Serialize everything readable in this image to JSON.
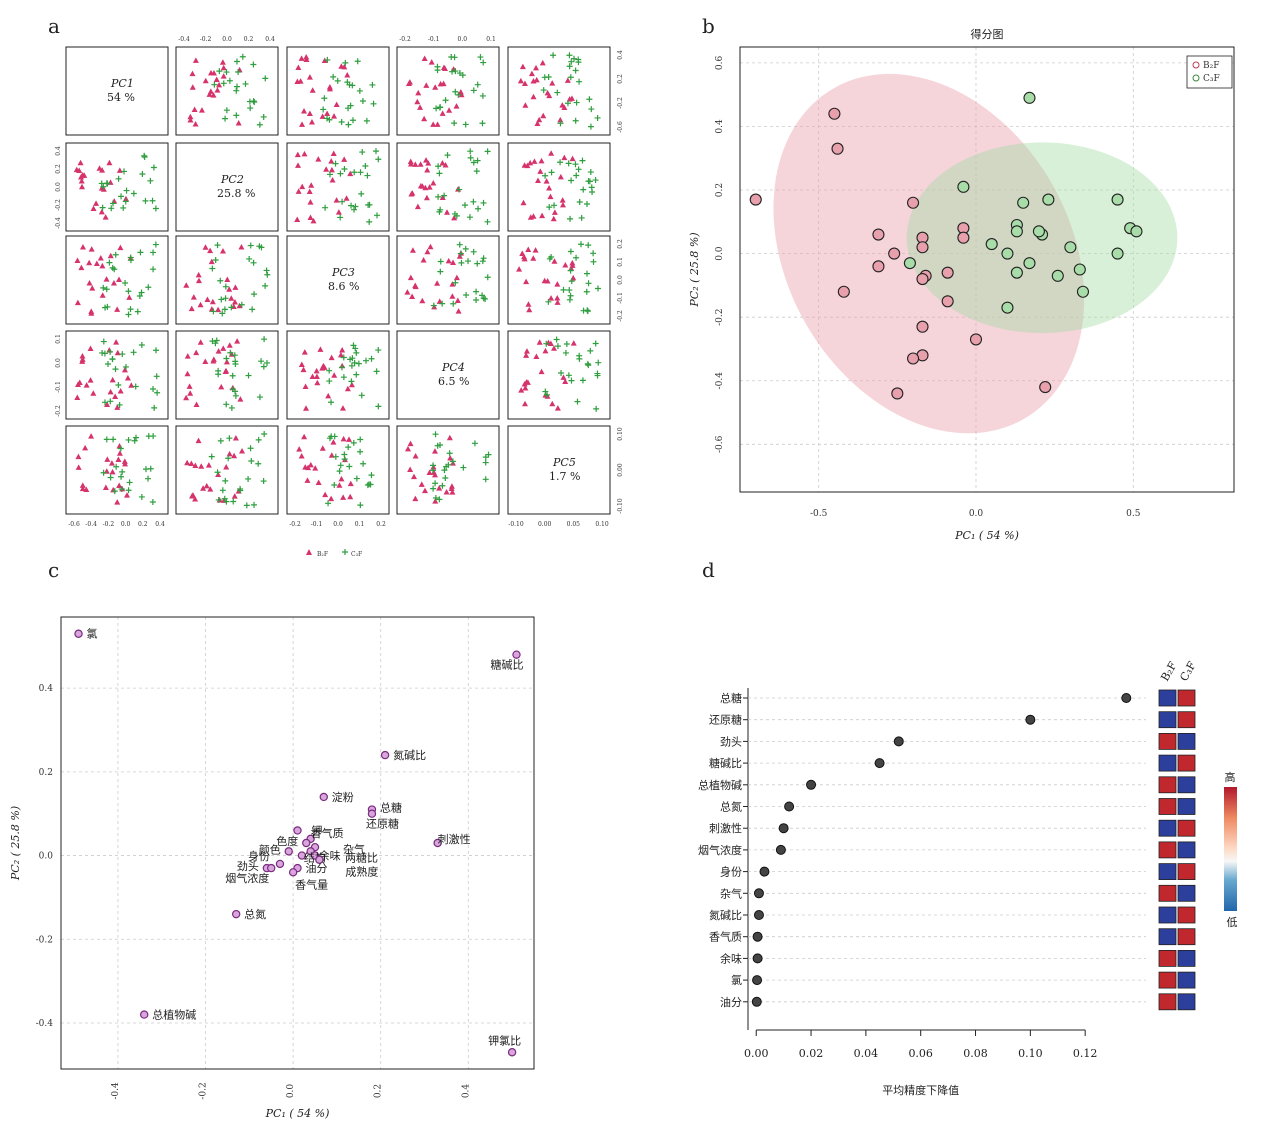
{
  "panel_labels": [
    "a",
    "b",
    "c",
    "d"
  ],
  "chart_data": [
    {
      "type": "scatter",
      "panel": "a",
      "diag": [
        {
          "pc": "PC1",
          "pct": "54 %"
        },
        {
          "pc": "PC2",
          "pct": "25.8 %"
        },
        {
          "pc": "PC3",
          "pct": "8.6 %"
        },
        {
          "pc": "PC4",
          "pct": "6.5 %"
        },
        {
          "pc": "PC5",
          "pct": "1.7 %"
        }
      ],
      "top_ticks": {
        "col2": [
          "-0.4",
          "-0.2",
          "0.0",
          "0.2",
          "0.4"
        ],
        "col4": [
          "-0.2",
          "-0.1",
          "0.0",
          "0.1"
        ]
      },
      "bottom_ticks": {
        "col1": [
          "-0.6",
          "-0.4",
          "-0.2",
          "0.0",
          "0.2",
          "0.4"
        ],
        "col3": [
          "-0.2",
          "-0.1",
          "0.0",
          "0.1",
          "0.2"
        ],
        "col5": [
          "-0.10",
          "0.00",
          "0.05",
          "0.10"
        ]
      },
      "left_ticks": {
        "row2": [
          "0.4",
          "0.2",
          "0.0",
          "-0.2",
          "-0.4"
        ],
        "row4": [
          "0.1",
          "0.0",
          "-0.1",
          "-0.2"
        ]
      },
      "right_ticks": {
        "row1": [
          "0.4",
          "0.2",
          "-0.2",
          "-0.6"
        ],
        "row3": [
          "0.2",
          "0.1",
          "0.0",
          "-0.1",
          "-0.2"
        ],
        "row5": [
          "0.10",
          "0.00",
          "-0.10"
        ]
      },
      "legend": [
        "B₂F",
        "C₃F"
      ],
      "colors": {
        "B2F": "#d6336c",
        "C3F": "#2e9e3e"
      }
    },
    {
      "type": "scatter",
      "panel": "b",
      "title": "得分图",
      "xlabel": "PC₁ ( 54 %)",
      "ylabel": "PC₂ ( 25.8 %)",
      "xlim": [
        -0.75,
        0.82
      ],
      "ylim": [
        -0.75,
        0.65
      ],
      "xticks": [
        "-0.5",
        "0.0",
        "0.5"
      ],
      "xtick_vals": [
        -0.5,
        0.0,
        0.5
      ],
      "yticks": [
        "-0.6",
        "-0.4",
        "-0.2",
        "0.0",
        "0.2",
        "0.4",
        "0.6"
      ],
      "ytick_vals": [
        -0.6,
        -0.4,
        -0.2,
        0.0,
        0.2,
        0.4,
        0.6
      ],
      "legend": [
        "B₂F",
        "C₃F"
      ],
      "series": [
        {
          "name": "B₂F",
          "color": "#e8a0ad",
          "edge": "#c0395a",
          "ellipse": {
            "cx": -0.15,
            "cy": 0.0,
            "rx": 0.45,
            "ry": 0.6,
            "angle": -30
          },
          "points": [
            [
              -0.45,
              0.44
            ],
            [
              -0.44,
              0.33
            ],
            [
              -0.7,
              0.17
            ],
            [
              -0.2,
              0.16
            ],
            [
              -0.31,
              0.06
            ],
            [
              -0.26,
              0.0
            ],
            [
              -0.17,
              0.05
            ],
            [
              -0.17,
              0.02
            ],
            [
              -0.04,
              0.08
            ],
            [
              -0.04,
              0.05
            ],
            [
              -0.16,
              -0.07
            ],
            [
              -0.17,
              -0.08
            ],
            [
              -0.31,
              -0.04
            ],
            [
              -0.42,
              -0.12
            ],
            [
              -0.09,
              -0.06
            ],
            [
              -0.09,
              -0.15
            ],
            [
              -0.17,
              -0.23
            ],
            [
              -0.17,
              -0.32
            ],
            [
              -0.2,
              -0.33
            ],
            [
              0.0,
              -0.27
            ],
            [
              -0.25,
              -0.44
            ],
            [
              0.22,
              -0.42
            ]
          ]
        },
        {
          "name": "C₃F",
          "color": "#a8dca8",
          "edge": "#3a8a3a",
          "ellipse": {
            "cx": 0.21,
            "cy": 0.05,
            "rx": 0.43,
            "ry": 0.3,
            "angle": 0
          },
          "points": [
            [
              0.17,
              0.49
            ],
            [
              -0.04,
              0.21
            ],
            [
              0.23,
              0.17
            ],
            [
              0.15,
              0.16
            ],
            [
              0.45,
              0.17
            ],
            [
              0.13,
              0.09
            ],
            [
              0.13,
              0.07
            ],
            [
              0.21,
              0.06
            ],
            [
              0.2,
              0.07
            ],
            [
              0.49,
              0.08
            ],
            [
              0.51,
              0.07
            ],
            [
              0.05,
              0.03
            ],
            [
              0.1,
              0.0
            ],
            [
              0.3,
              0.02
            ],
            [
              0.45,
              0.0
            ],
            [
              -0.21,
              -0.03
            ],
            [
              0.17,
              -0.03
            ],
            [
              0.13,
              -0.06
            ],
            [
              0.26,
              -0.07
            ],
            [
              0.33,
              -0.05
            ],
            [
              0.34,
              -0.12
            ],
            [
              0.1,
              -0.17
            ]
          ]
        }
      ]
    },
    {
      "type": "scatter",
      "panel": "c",
      "xlabel": "PC₁ ( 54 %)",
      "ylabel": "PC₂ ( 25.8 %)",
      "xlim": [
        -0.53,
        0.55
      ],
      "ylim": [
        -0.51,
        0.57
      ],
      "xticks": [
        "-0.4",
        "-0.2",
        "0.0",
        "0.2",
        "0.4"
      ],
      "xtick_vals": [
        -0.4,
        -0.2,
        0.0,
        0.2,
        0.4
      ],
      "yticks": [
        "-0.4",
        "-0.2",
        "0.0",
        "0.2",
        "0.4"
      ],
      "ytick_vals": [
        -0.4,
        -0.2,
        0.0,
        0.2,
        0.4
      ],
      "point_color": "#d8a6dd",
      "point_edge": "#7a2b7f",
      "points": [
        {
          "label": "氯",
          "x": -0.49,
          "y": 0.53,
          "dx": 8,
          "dy": 4
        },
        {
          "label": "糖碱比",
          "x": 0.51,
          "y": 0.48,
          "dx": -26,
          "dy": 14
        },
        {
          "label": "氮碱比",
          "x": 0.21,
          "y": 0.24,
          "dx": 8,
          "dy": 4
        },
        {
          "label": "淀粉",
          "x": 0.07,
          "y": 0.14,
          "dx": 8,
          "dy": 4
        },
        {
          "label": "总糖",
          "x": 0.18,
          "y": 0.11,
          "dx": 8,
          "dy": 2
        },
        {
          "label": "还原糖",
          "x": 0.18,
          "y": 0.1,
          "dx": -6,
          "dy": 14
        },
        {
          "label": "刺激性",
          "x": 0.33,
          "y": 0.03,
          "dx": 0,
          "dy": 0
        },
        {
          "label": "钾",
          "x": 0.01,
          "y": 0.06,
          "dx": 14,
          "dy": 4
        },
        {
          "label": "香气质",
          "x": 0.04,
          "y": 0.04,
          "dx": 0,
          "dy": -2
        },
        {
          "label": "色度",
          "x": 0.03,
          "y": 0.03,
          "dx": -30,
          "dy": 2
        },
        {
          "label": "杂气",
          "x": 0.05,
          "y": 0.02,
          "dx": 28,
          "dy": 6
        },
        {
          "label": "余味",
          "x": 0.04,
          "y": 0.01,
          "dx": 8,
          "dy": 8
        },
        {
          "label": "颜色",
          "x": -0.01,
          "y": 0.01,
          "dx": -30,
          "dy": 2
        },
        {
          "label": "两糖比",
          "x": 0.05,
          "y": 0.0,
          "dx": 30,
          "dy": 6
        },
        {
          "label": "结构",
          "x": 0.02,
          "y": -0.0,
          "dx": 2,
          "dy": 6
        },
        {
          "label": "身份",
          "x": -0.03,
          "y": -0.02,
          "dx": -32,
          "dy": -4
        },
        {
          "label": "成熟度",
          "x": 0.06,
          "y": -0.01,
          "dx": 26,
          "dy": 16
        },
        {
          "label": "劲头",
          "x": -0.06,
          "y": -0.03,
          "dx": -30,
          "dy": 2
        },
        {
          "label": "油分",
          "x": 0.01,
          "y": -0.03,
          "dx": 8,
          "dy": 4
        },
        {
          "label": "烟气浓度",
          "x": -0.05,
          "y": -0.03,
          "dx": -46,
          "dy": 14
        },
        {
          "label": "香气量",
          "x": 0.0,
          "y": -0.04,
          "dx": 2,
          "dy": 16
        },
        {
          "label": "总氮",
          "x": -0.13,
          "y": -0.14,
          "dx": 8,
          "dy": 4
        },
        {
          "label": "总植物碱",
          "x": -0.34,
          "y": -0.38,
          "dx": 8,
          "dy": 4
        },
        {
          "label": "钾氯比",
          "x": 0.5,
          "y": -0.47,
          "dx": -24,
          "dy": -8
        }
      ]
    },
    {
      "type": "scatter",
      "panel": "d",
      "xlabel": "平均精度下降值",
      "xlim": [
        -0.003,
        0.14
      ],
      "xticks": [
        "0.00",
        "0.02",
        "0.04",
        "0.06",
        "0.08",
        "0.10",
        "0.12"
      ],
      "xtick_vals": [
        0.0,
        0.02,
        0.04,
        0.06,
        0.08,
        0.1,
        0.12
      ],
      "columns": [
        "B₂F",
        "C₃F"
      ],
      "colorbar": {
        "high": "高",
        "low": "低"
      },
      "colors": {
        "high": "#c0282d",
        "low": "#2c3f9c"
      },
      "items": [
        {
          "name": "总糖",
          "value": 0.135,
          "b": "low",
          "c": "high"
        },
        {
          "name": "还原糖",
          "value": 0.1,
          "b": "low",
          "c": "high"
        },
        {
          "name": "劲头",
          "value": 0.052,
          "b": "high",
          "c": "low"
        },
        {
          "name": "糖碱比",
          "value": 0.045,
          "b": "low",
          "c": "high"
        },
        {
          "name": "总植物碱",
          "value": 0.02,
          "b": "high",
          "c": "low"
        },
        {
          "name": "总氮",
          "value": 0.012,
          "b": "high",
          "c": "low"
        },
        {
          "name": "刺激性",
          "value": 0.01,
          "b": "low",
          "c": "high"
        },
        {
          "name": "烟气浓度",
          "value": 0.009,
          "b": "high",
          "c": "low"
        },
        {
          "name": "身份",
          "value": 0.003,
          "b": "low",
          "c": "high"
        },
        {
          "name": "杂气",
          "value": 0.001,
          "b": "high",
          "c": "low"
        },
        {
          "name": "氮碱比",
          "value": 0.001,
          "b": "low",
          "c": "high"
        },
        {
          "name": "香气质",
          "value": 0.0005,
          "b": "low",
          "c": "high"
        },
        {
          "name": "余味",
          "value": 0.0005,
          "b": "high",
          "c": "low"
        },
        {
          "name": "氯",
          "value": 0.0003,
          "b": "high",
          "c": "low"
        },
        {
          "name": "油分",
          "value": 0.0002,
          "b": "high",
          "c": "low"
        }
      ]
    }
  ]
}
